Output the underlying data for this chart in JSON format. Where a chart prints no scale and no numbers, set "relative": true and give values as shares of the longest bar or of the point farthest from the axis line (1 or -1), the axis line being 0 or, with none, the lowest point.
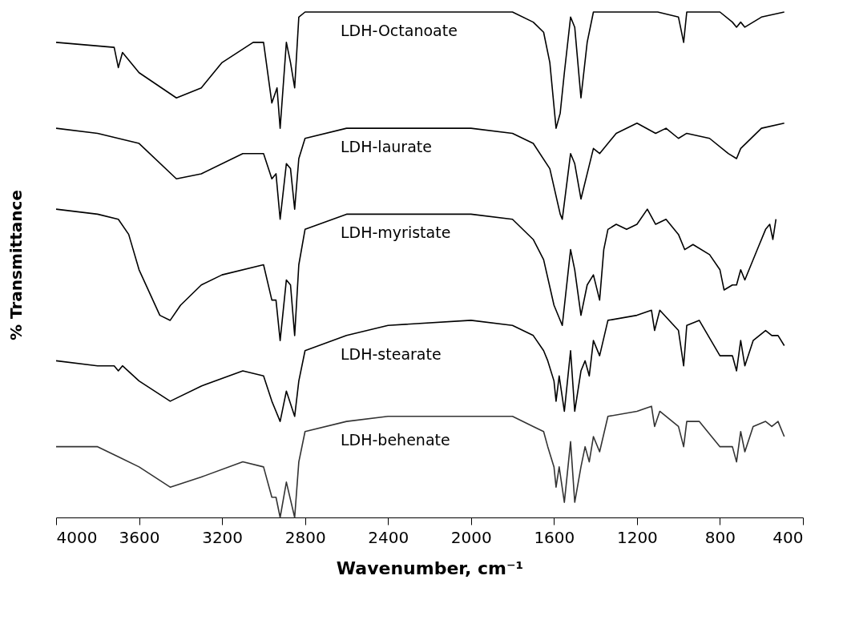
{
  "chart_data": {
    "type": "line",
    "relative": true,
    "xlabel": "Wavenumber, cm⁻¹",
    "ylabel": "% Transmittance",
    "xlim": [
      4000,
      400
    ],
    "xticks": [
      4000,
      3600,
      3200,
      2800,
      2400,
      2000,
      1600,
      1200,
      800,
      400
    ],
    "legend": false,
    "grid": false,
    "series": [
      {
        "name": "LDH-Octanoate",
        "color": "#000000",
        "x": [
          4000,
          3720,
          3700,
          3680,
          3600,
          3420,
          3300,
          3200,
          3050,
          3000,
          2960,
          2935,
          2920,
          2890,
          2870,
          2850,
          2830,
          2800,
          2400,
          2000,
          1800,
          1700,
          1650,
          1620,
          1590,
          1570,
          1550,
          1520,
          1500,
          1470,
          1440,
          1410,
          1300,
          1100,
          1000,
          975,
          960,
          800,
          740,
          720,
          700,
          680,
          600,
          490
        ],
        "values": [
          0.94,
          0.93,
          0.89,
          0.92,
          0.88,
          0.83,
          0.85,
          0.9,
          0.94,
          0.94,
          0.82,
          0.85,
          0.77,
          0.94,
          0.9,
          0.85,
          0.99,
          1.0,
          1.0,
          1.0,
          1.0,
          0.98,
          0.96,
          0.9,
          0.77,
          0.8,
          0.88,
          0.99,
          0.97,
          0.83,
          0.94,
          1.0,
          1.0,
          1.0,
          0.99,
          0.94,
          1.0,
          1.0,
          0.98,
          0.97,
          0.98,
          0.97,
          0.99,
          1.0
        ]
      },
      {
        "name": "LDH-laurate",
        "color": "#000000",
        "x": [
          4000,
          3800,
          3600,
          3420,
          3300,
          3100,
          3000,
          2960,
          2940,
          2920,
          2890,
          2870,
          2850,
          2830,
          2800,
          2600,
          2400,
          2000,
          1800,
          1700,
          1620,
          1570,
          1560,
          1520,
          1500,
          1470,
          1440,
          1410,
          1380,
          1300,
          1200,
          1110,
          1060,
          1000,
          960,
          850,
          760,
          720,
          700,
          600,
          490
        ],
        "values": [
          0.77,
          0.76,
          0.74,
          0.67,
          0.68,
          0.72,
          0.72,
          0.67,
          0.68,
          0.59,
          0.7,
          0.69,
          0.61,
          0.71,
          0.75,
          0.77,
          0.77,
          0.77,
          0.76,
          0.74,
          0.69,
          0.6,
          0.59,
          0.72,
          0.7,
          0.63,
          0.68,
          0.73,
          0.72,
          0.76,
          0.78,
          0.76,
          0.77,
          0.75,
          0.76,
          0.75,
          0.72,
          0.71,
          0.73,
          0.77,
          0.78
        ]
      },
      {
        "name": "LDH-myristate",
        "color": "#000000",
        "x": [
          4000,
          3800,
          3700,
          3650,
          3600,
          3500,
          3450,
          3400,
          3300,
          3200,
          3000,
          2960,
          2940,
          2920,
          2890,
          2870,
          2850,
          2830,
          2800,
          2600,
          2400,
          2000,
          1800,
          1700,
          1650,
          1600,
          1560,
          1520,
          1500,
          1470,
          1440,
          1410,
          1380,
          1360,
          1340,
          1300,
          1250,
          1200,
          1150,
          1110,
          1060,
          1000,
          970,
          930,
          850,
          800,
          780,
          740,
          720,
          700,
          680,
          620,
          580,
          560,
          545,
          530
        ],
        "values": [
          0.61,
          0.6,
          0.59,
          0.56,
          0.49,
          0.4,
          0.39,
          0.42,
          0.46,
          0.48,
          0.5,
          0.43,
          0.43,
          0.35,
          0.47,
          0.46,
          0.36,
          0.5,
          0.57,
          0.6,
          0.6,
          0.6,
          0.59,
          0.55,
          0.51,
          0.42,
          0.38,
          0.53,
          0.49,
          0.4,
          0.46,
          0.48,
          0.43,
          0.53,
          0.57,
          0.58,
          0.57,
          0.58,
          0.61,
          0.58,
          0.59,
          0.56,
          0.53,
          0.54,
          0.52,
          0.49,
          0.45,
          0.46,
          0.46,
          0.49,
          0.47,
          0.53,
          0.57,
          0.58,
          0.55,
          0.59
        ]
      },
      {
        "name": "LDH-stearate",
        "color": "#000000",
        "x": [
          4000,
          3800,
          3720,
          3700,
          3680,
          3600,
          3450,
          3300,
          3100,
          3000,
          2960,
          2920,
          2890,
          2850,
          2830,
          2800,
          2600,
          2400,
          2000,
          1800,
          1700,
          1650,
          1630,
          1600,
          1590,
          1575,
          1550,
          1520,
          1500,
          1470,
          1450,
          1430,
          1410,
          1380,
          1340,
          1200,
          1130,
          1115,
          1090,
          1000,
          975,
          960,
          900,
          800,
          740,
          720,
          700,
          680,
          640,
          580,
          550,
          520,
          490
        ],
        "values": [
          0.31,
          0.3,
          0.3,
          0.29,
          0.3,
          0.27,
          0.23,
          0.26,
          0.29,
          0.28,
          0.23,
          0.19,
          0.25,
          0.2,
          0.27,
          0.33,
          0.36,
          0.38,
          0.39,
          0.38,
          0.36,
          0.33,
          0.31,
          0.27,
          0.23,
          0.28,
          0.21,
          0.33,
          0.21,
          0.29,
          0.31,
          0.28,
          0.35,
          0.32,
          0.39,
          0.4,
          0.41,
          0.37,
          0.41,
          0.37,
          0.3,
          0.38,
          0.39,
          0.32,
          0.32,
          0.29,
          0.35,
          0.3,
          0.35,
          0.37,
          0.36,
          0.36,
          0.34
        ]
      },
      {
        "name": "LDH-behenate",
        "color": "#333333",
        "x": [
          4000,
          3800,
          3700,
          3600,
          3450,
          3300,
          3100,
          3000,
          2960,
          2940,
          2920,
          2890,
          2850,
          2830,
          2800,
          2600,
          2400,
          2000,
          1800,
          1700,
          1650,
          1630,
          1600,
          1590,
          1575,
          1550,
          1520,
          1500,
          1470,
          1450,
          1430,
          1410,
          1380,
          1340,
          1200,
          1130,
          1115,
          1090,
          1000,
          975,
          960,
          900,
          800,
          740,
          720,
          700,
          680,
          640,
          580,
          550,
          520,
          490
        ],
        "values": [
          0.14,
          0.14,
          0.12,
          0.1,
          0.06,
          0.08,
          0.11,
          0.1,
          0.04,
          0.04,
          0.0,
          0.07,
          0.0,
          0.11,
          0.17,
          0.19,
          0.2,
          0.2,
          0.2,
          0.18,
          0.17,
          0.14,
          0.1,
          0.06,
          0.1,
          0.03,
          0.15,
          0.03,
          0.1,
          0.14,
          0.11,
          0.16,
          0.13,
          0.2,
          0.21,
          0.22,
          0.18,
          0.21,
          0.18,
          0.14,
          0.19,
          0.19,
          0.14,
          0.14,
          0.11,
          0.17,
          0.13,
          0.18,
          0.19,
          0.18,
          0.19,
          0.16
        ]
      }
    ]
  }
}
